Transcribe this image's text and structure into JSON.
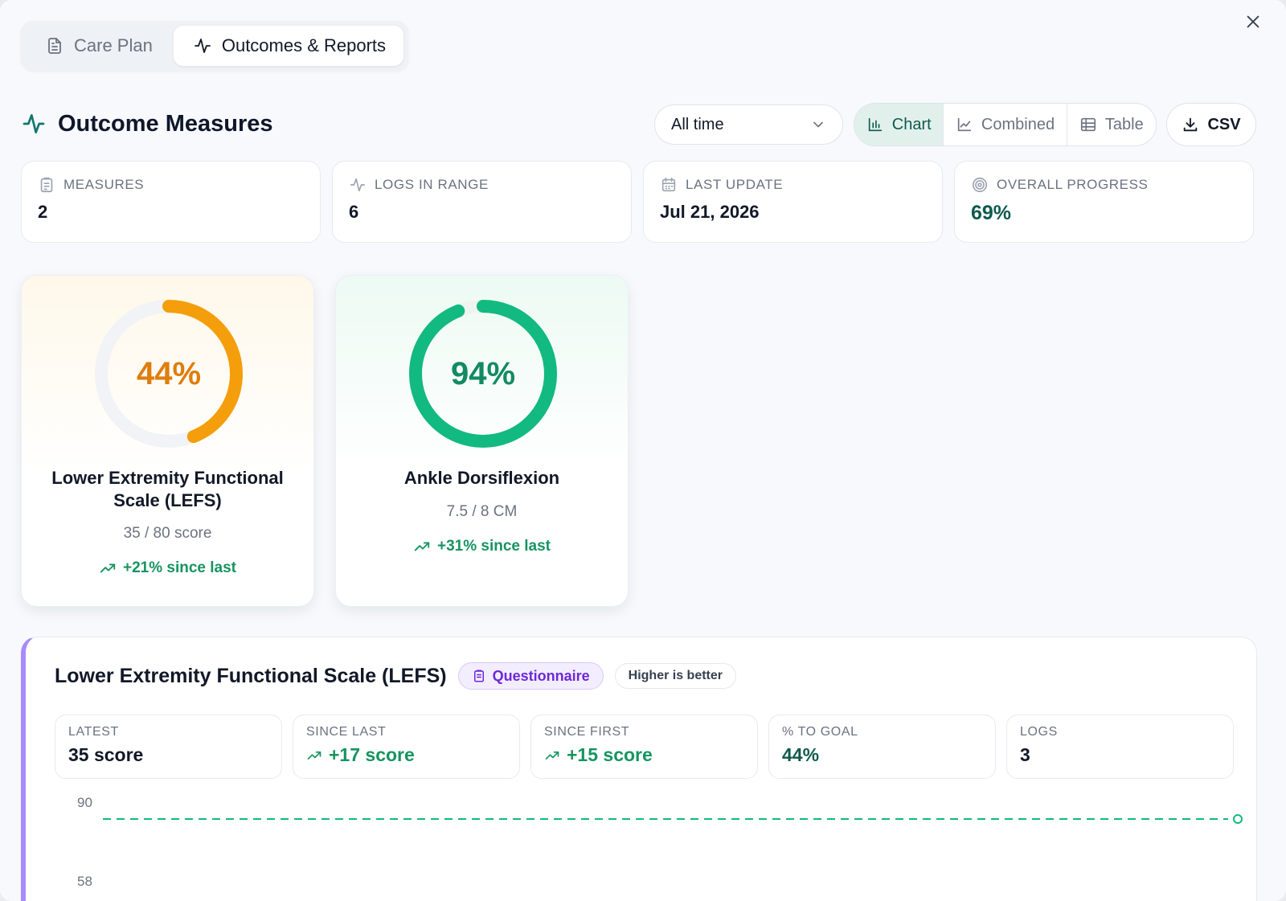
{
  "tabs": [
    {
      "label": "Care Plan",
      "icon": "document-icon",
      "active": false
    },
    {
      "label": "Outcomes & Reports",
      "icon": "activity-icon",
      "active": true
    }
  ],
  "section": {
    "title": "Outcome Measures",
    "icon": "activity-icon"
  },
  "range": {
    "value": "All time"
  },
  "views": [
    {
      "label": "Chart",
      "icon": "bar-chart-icon",
      "active": true
    },
    {
      "label": "Combined",
      "icon": "line-chart-icon",
      "active": false
    },
    {
      "label": "Table",
      "icon": "table-icon",
      "active": false
    }
  ],
  "csv": {
    "label": "CSV",
    "icon": "download-icon"
  },
  "stats": [
    {
      "label": "Measures",
      "value": "2",
      "icon": "clipboard-icon"
    },
    {
      "label": "Logs in range",
      "value": "6",
      "icon": "activity-icon"
    },
    {
      "label": "Last update",
      "value": "Jul 21, 2026",
      "icon": "calendar-icon"
    },
    {
      "label": "Overall progress",
      "value": "69%",
      "icon": "target-icon"
    }
  ],
  "measures": [
    {
      "name": "Lower Extremity Functional Scale (LEFS)",
      "percent": 44,
      "percent_label": "44%",
      "value": "35 / 80 score",
      "trend": "+21% since last",
      "color": "#f59e0b"
    },
    {
      "name": "Ankle Dorsiflexion",
      "percent": 94,
      "percent_label": "94%",
      "value": "7.5 / 8 CM",
      "trend": "+31% since last",
      "color": "#12b981"
    }
  ],
  "detail": {
    "title": "Lower Extremity Functional Scale (LEFS)",
    "type_badge": "Questionnaire",
    "direction_badge": "Higher is better",
    "accent": "#a78bfa",
    "metrics": [
      {
        "label": "Latest",
        "value": "35 score"
      },
      {
        "label": "Since last",
        "value": "+17 score"
      },
      {
        "label": "Since first",
        "value": "+15 score"
      },
      {
        "label": "% to goal",
        "value": "44%"
      },
      {
        "label": "Logs",
        "value": "3"
      }
    ],
    "chart": {
      "ticks": [
        "90",
        "58"
      ]
    }
  }
}
